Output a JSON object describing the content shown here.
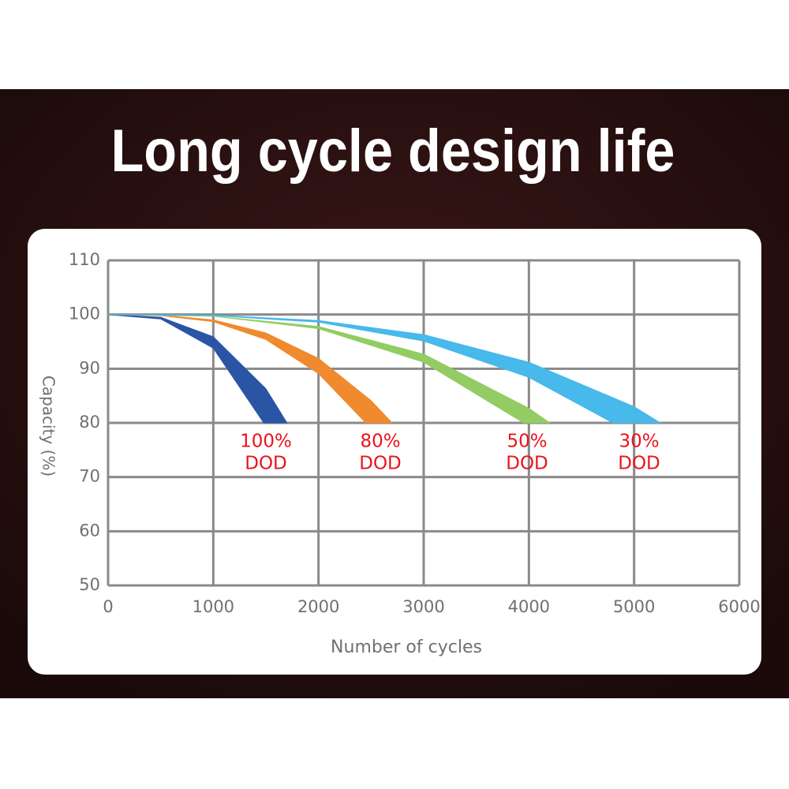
{
  "chart_data": {
    "type": "band",
    "title": "Long cycle design life",
    "x_label": "Number of cycles",
    "y_label": "Capacity (%)",
    "xlim": [
      0,
      6000
    ],
    "xticks": [
      0,
      1000,
      2000,
      3000,
      4000,
      5000,
      6000
    ],
    "ylim": [
      50,
      110
    ],
    "yticks": [
      50,
      60,
      70,
      80,
      90,
      100,
      110
    ],
    "grid": true,
    "series": [
      {
        "label": [
          "100%",
          "DOD"
        ],
        "color": "#2a55a5",
        "outer": {
          "x": [
            0,
            500,
            1000,
            1500,
            1700
          ],
          "values": [
            100,
            99.5,
            95.9,
            86.3,
            80
          ]
        },
        "inner": {
          "x": [
            0,
            500,
            1000,
            1480
          ],
          "values": [
            100,
            99.2,
            93.8,
            80
          ]
        }
      },
      {
        "label": [
          "80%",
          "DOD"
        ],
        "color": "#ef8a2e",
        "outer": {
          "x": [
            0,
            500,
            1000,
            1500,
            2000,
            2500,
            2700
          ],
          "values": [
            100,
            99.9,
            99.0,
            96.6,
            91.9,
            84.1,
            80
          ]
        },
        "inner": {
          "x": [
            0,
            500,
            1000,
            1500,
            2000,
            2450
          ],
          "values": [
            100,
            99.8,
            98.7,
            95.4,
            89.1,
            80
          ]
        }
      },
      {
        "label": [
          "50%",
          "DOD"
        ],
        "color": "#92cc62",
        "outer": {
          "x": [
            0,
            1000,
            2000,
            3000,
            4000,
            4200
          ],
          "values": [
            100,
            99.7,
            97.8,
            92.7,
            82.7,
            80
          ]
        },
        "inner": {
          "x": [
            0,
            1000,
            2000,
            3000,
            3950
          ],
          "values": [
            100,
            99.7,
            97.4,
            91.2,
            80
          ]
        }
      },
      {
        "label": [
          "30%",
          "DOD"
        ],
        "color": "#47b9ea",
        "outer": {
          "x": [
            0,
            1000,
            2000,
            3000,
            4000,
            5000,
            5250
          ],
          "values": [
            100,
            99.9,
            98.9,
            96.3,
            91.2,
            83,
            80
          ]
        },
        "inner": {
          "x": [
            0,
            1000,
            2000,
            3000,
            4000,
            4800
          ],
          "values": [
            100,
            99.8,
            98.6,
            95.1,
            88.4,
            80
          ]
        }
      }
    ]
  }
}
